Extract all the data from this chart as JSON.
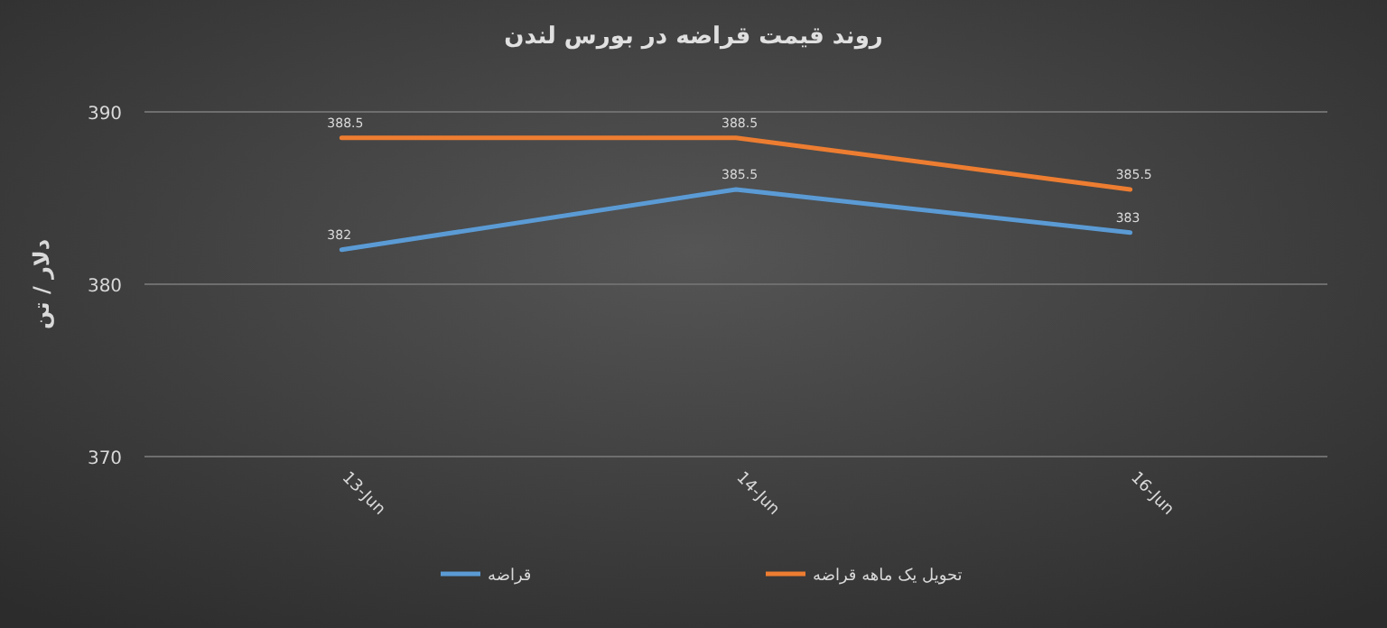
{
  "chart_data": {
    "type": "line",
    "title": "روند قیمت قراضه در بورس لندن",
    "ylabel": "دلار / تن",
    "categories": [
      "13-Jun",
      "14-Jun",
      "16-Jun"
    ],
    "series": [
      {
        "name": "قراضه",
        "color": "#5b9bd5",
        "values": [
          382,
          385.5,
          383
        ]
      },
      {
        "name": "تحویل یک ماهه قراضه",
        "color": "#ed7d31",
        "values": [
          388.5,
          388.5,
          385.5
        ]
      }
    ],
    "ylim": [
      370,
      390
    ],
    "yticks": [
      370,
      380,
      390
    ],
    "grid": "y",
    "legend": "bottom",
    "data_labels": true,
    "marker": "none",
    "line_style": "solid"
  }
}
